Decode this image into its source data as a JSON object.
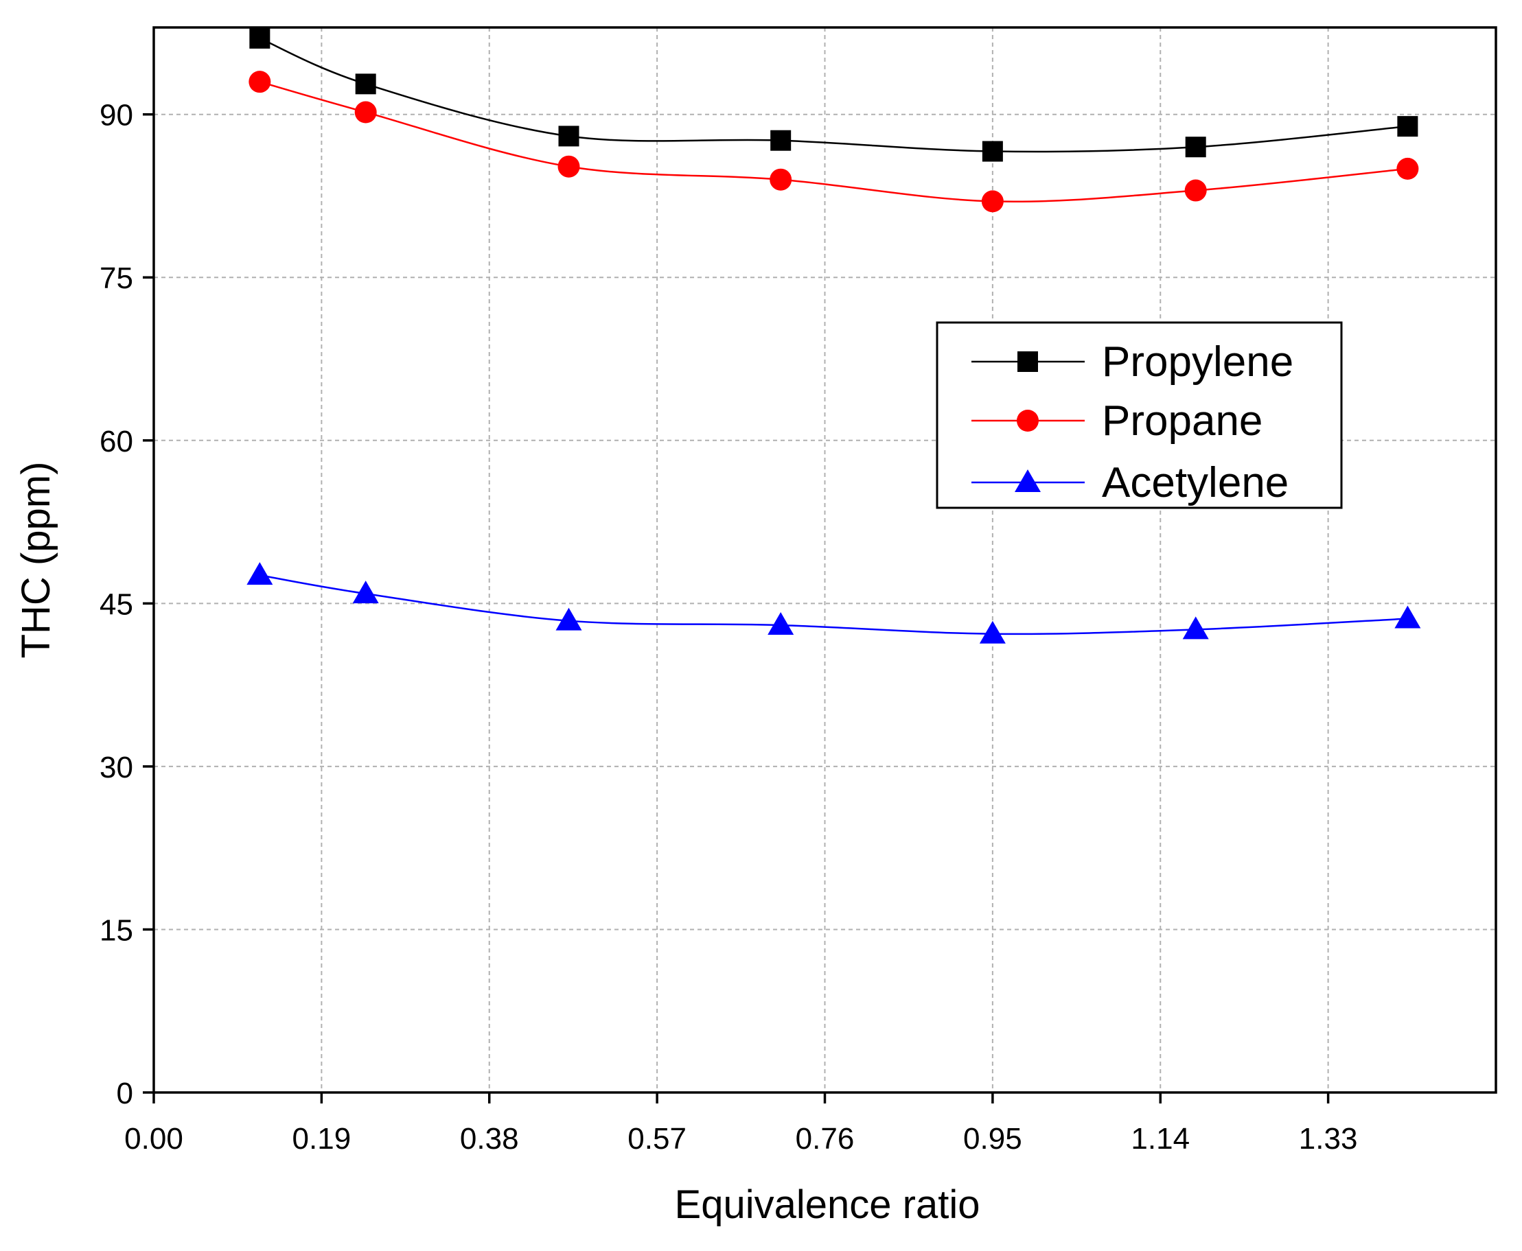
{
  "chart_data": {
    "type": "line",
    "xlabel": "Equivalence ratio",
    "ylabel": "THC (ppm)",
    "xlim": [
      0.0,
      1.52
    ],
    "ylim": [
      0,
      98
    ],
    "xticks": [
      "0.00",
      "0.19",
      "0.38",
      "0.57",
      "0.76",
      "0.95",
      "1.14",
      "1.33"
    ],
    "yticks": [
      "0",
      "15",
      "30",
      "45",
      "60",
      "75",
      "90"
    ],
    "grid": true,
    "legend_position": "center-right",
    "x": [
      0.12,
      0.24,
      0.47,
      0.71,
      0.95,
      1.18,
      1.42
    ],
    "series": [
      {
        "name": "Propylene",
        "marker": "square",
        "color": "#000000",
        "values": [
          97.0,
          92.8,
          88.0,
          87.6,
          86.6,
          87.0,
          88.9
        ]
      },
      {
        "name": "Propane",
        "marker": "circle",
        "color": "#ff0000",
        "values": [
          93.0,
          90.2,
          85.2,
          84.0,
          82.0,
          83.0,
          85.0
        ]
      },
      {
        "name": "Acetylene",
        "marker": "triangle",
        "color": "#0000ff",
        "values": [
          47.6,
          45.9,
          43.4,
          43.0,
          42.2,
          42.6,
          43.6
        ]
      }
    ]
  }
}
